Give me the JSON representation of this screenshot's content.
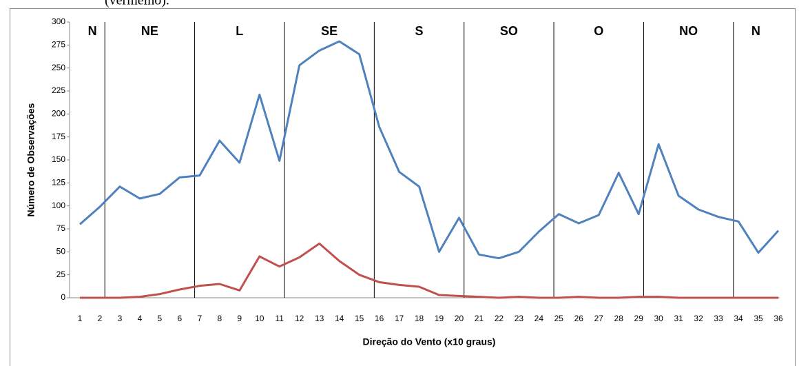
{
  "caption_fragment": "(vermelho).",
  "chart_data": {
    "type": "line",
    "x_label": "Direção do Vento (x10 graus)",
    "y_label": "Número de Observações",
    "sectors": [
      "N",
      "NE",
      "L",
      "SE",
      "S",
      "SO",
      "O",
      "NO",
      "N"
    ],
    "categories": [
      "1",
      "2",
      "3",
      "4",
      "5",
      "6",
      "7",
      "8",
      "9",
      "10",
      "11",
      "12",
      "13",
      "14",
      "15",
      "16",
      "17",
      "18",
      "19",
      "20",
      "21",
      "22",
      "23",
      "24",
      "25",
      "26",
      "27",
      "28",
      "29",
      "30",
      "31",
      "32",
      "33",
      "34",
      "35",
      "36"
    ],
    "series": [
      {
        "color": "#4f81bd",
        "values": [
          80,
          99,
          121,
          108,
          113,
          131,
          133,
          171,
          147,
          221,
          149,
          253,
          269,
          279,
          265,
          186,
          137,
          121,
          50,
          87,
          47,
          43,
          50,
          72,
          91,
          81,
          90,
          136,
          91,
          167,
          111,
          96,
          88,
          83,
          49,
          73
        ]
      },
      {
        "color": "#c0504d",
        "values": [
          0,
          0,
          0,
          1,
          4,
          9,
          13,
          15,
          8,
          45,
          34,
          44,
          59,
          40,
          25,
          17,
          14,
          12,
          3,
          2,
          1,
          0,
          1,
          0,
          0,
          1,
          0,
          0,
          1,
          1,
          0,
          0,
          0,
          0,
          0,
          0
        ]
      }
    ],
    "ylim": [
      0,
      300
    ],
    "yticks": [
      0,
      25,
      50,
      75,
      100,
      125,
      150,
      175,
      200,
      225,
      250,
      275,
      300
    ]
  }
}
